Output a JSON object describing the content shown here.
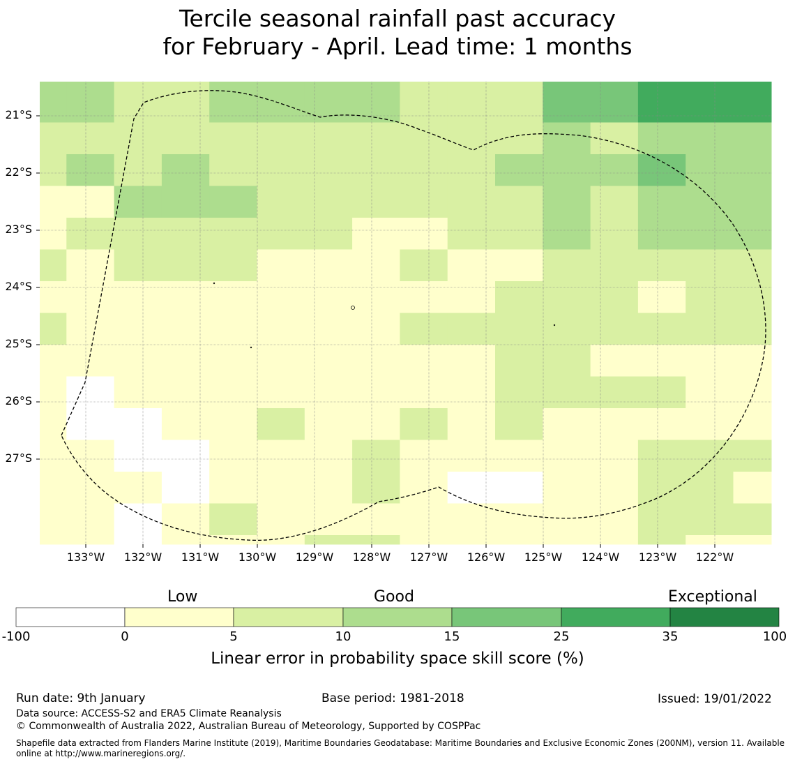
{
  "title_line1": "Tercile seasonal rainfall past accuracy",
  "title_line2": "for February - April. Lead time: 1 months",
  "map": {
    "lat_labels": [
      "21°S",
      "22°S",
      "23°S",
      "24°S",
      "25°S",
      "26°S",
      "27°S"
    ],
    "lon_labels": [
      "133°W",
      "132°W",
      "131°W",
      "130°W",
      "129°W",
      "128°W",
      "127°W",
      "126°W",
      "125°W",
      "124°W",
      "123°W",
      "122°W"
    ],
    "grid_classes": [
      [
        3,
        3,
        2,
        2,
        3,
        3,
        3,
        3,
        2,
        2,
        2,
        4,
        4,
        5,
        5,
        5
      ],
      [
        2,
        2,
        2,
        2,
        2,
        2,
        2,
        2,
        2,
        2,
        2,
        3,
        2,
        3,
        3,
        3
      ],
      [
        2,
        3,
        2,
        3,
        2,
        2,
        2,
        2,
        2,
        2,
        3,
        3,
        3,
        4,
        3,
        3
      ],
      [
        1,
        1,
        3,
        3,
        3,
        2,
        2,
        2,
        2,
        2,
        2,
        3,
        2,
        3,
        3,
        3
      ],
      [
        1,
        2,
        2,
        2,
        2,
        2,
        2,
        1,
        1,
        2,
        2,
        3,
        2,
        3,
        3,
        3
      ],
      [
        2,
        1,
        2,
        2,
        2,
        1,
        1,
        1,
        2,
        1,
        1,
        2,
        2,
        2,
        2,
        2
      ],
      [
        1,
        1,
        1,
        1,
        1,
        1,
        1,
        1,
        1,
        1,
        2,
        2,
        2,
        1,
        2,
        2
      ],
      [
        2,
        1,
        1,
        1,
        1,
        1,
        1,
        1,
        2,
        2,
        2,
        2,
        2,
        2,
        2,
        2
      ],
      [
        1,
        1,
        1,
        1,
        1,
        1,
        1,
        1,
        1,
        1,
        2,
        2,
        1,
        1,
        1,
        1
      ],
      [
        1,
        0,
        1,
        1,
        1,
        1,
        1,
        1,
        1,
        1,
        2,
        2,
        2,
        2,
        1,
        1
      ],
      [
        1,
        0,
        0,
        1,
        1,
        2,
        1,
        1,
        2,
        1,
        2,
        1,
        1,
        1,
        1,
        1
      ],
      [
        1,
        1,
        0,
        0,
        1,
        1,
        1,
        2,
        1,
        1,
        1,
        1,
        1,
        2,
        2,
        2
      ],
      [
        1,
        1,
        1,
        0,
        1,
        1,
        1,
        2,
        1,
        0,
        0,
        1,
        1,
        2,
        2,
        1
      ],
      [
        1,
        1,
        0,
        1,
        2,
        1,
        1,
        1,
        1,
        1,
        1,
        1,
        1,
        2,
        2,
        2
      ],
      [
        1,
        1,
        0,
        1,
        1,
        1,
        2,
        2,
        1,
        1,
        1,
        1,
        1,
        2,
        1,
        1
      ]
    ]
  },
  "colorbar": {
    "category_low": "Low",
    "category_good": "Good",
    "category_exceptional": "Exceptional",
    "colors": [
      "#ffffff",
      "#ffffcc",
      "#d9f0a3",
      "#addd8e",
      "#78c679",
      "#41ab5d",
      "#238443"
    ],
    "ticks": [
      "-100",
      "0",
      "5",
      "10",
      "15",
      "25",
      "35",
      "100"
    ],
    "label": "Linear error in probability space skill score (%)"
  },
  "footer": {
    "run_date": "Run date: 9th January",
    "base_period": "Base period: 1981-2018",
    "issued": "Issued: 19/01/2022",
    "data_source": "Data source: ACCESS-S2 and ERA5 Climate Reanalysis",
    "copyright": "© Commonwealth of Australia 2022, Australian Bureau of Meteorology, Supported by COSPPac",
    "shapefile": "Shapefile data extracted from Flanders Marine Institute (2019), Maritime Boundaries Geodatabase: Maritime Boundaries and Exclusive Economic Zones (200NM), version 11. Available online at http://www.marineregions.org/."
  }
}
